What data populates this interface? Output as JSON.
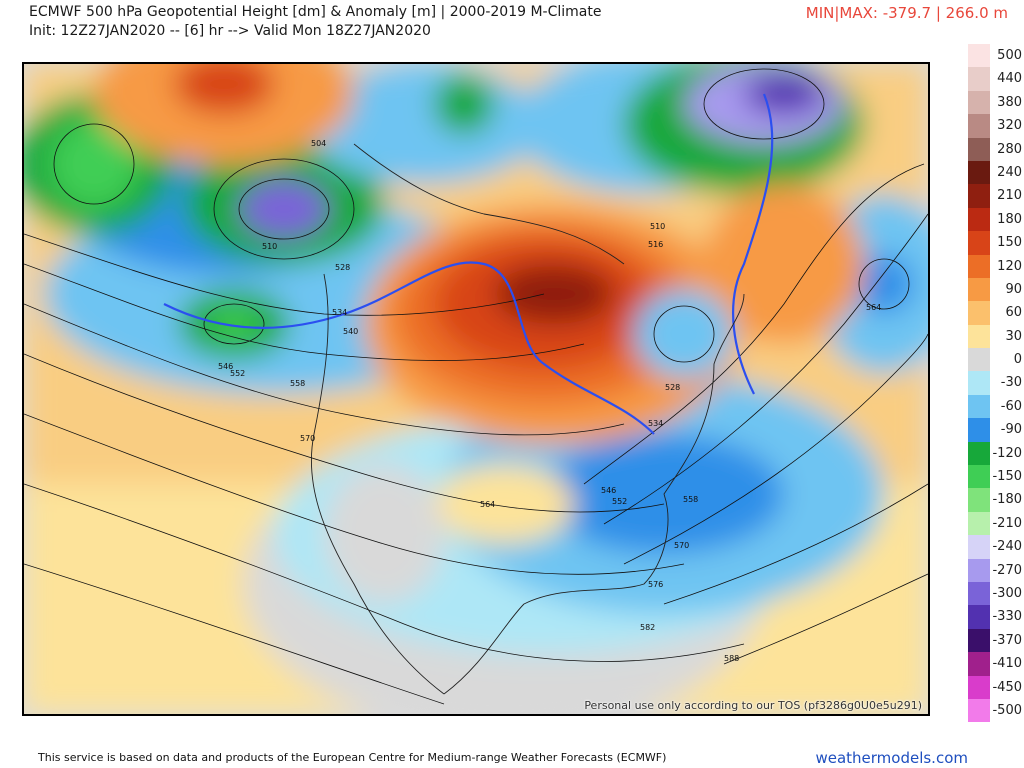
{
  "header": {
    "title": "ECMWF 500 hPa Geopotential Height [dm] & Anomaly [m] | 2000-2019 M-Climate",
    "init": "Init: 12Z27JAN2020 -- [6] hr --> Valid Mon 18Z27JAN2020",
    "minmax": "MIN|MAX: -379.7 | 266.0 m"
  },
  "map": {
    "credit": "Personal use only according to our TOS (pf3286g0U0e5u291)",
    "height_labels": [
      "504",
      "510",
      "528",
      "534",
      "540",
      "546",
      "552",
      "558",
      "570",
      "564",
      "510",
      "516",
      "564",
      "528",
      "534",
      "546",
      "552",
      "558",
      "570",
      "576",
      "582",
      "588"
    ]
  },
  "legend": {
    "entries": [
      {
        "label": "500",
        "color": "#fbe3e3"
      },
      {
        "label": "440",
        "color": "#e8cdc9"
      },
      {
        "label": "380",
        "color": "#d6b2ac"
      },
      {
        "label": "320",
        "color": "#b98a84"
      },
      {
        "label": "280",
        "color": "#8e5d56"
      },
      {
        "label": "240",
        "color": "#6a1a10"
      },
      {
        "label": "210",
        "color": "#8f1f10"
      },
      {
        "label": "180",
        "color": "#bb2a12"
      },
      {
        "label": "150",
        "color": "#d84418"
      },
      {
        "label": "120",
        "color": "#ec6e26"
      },
      {
        "label": "90",
        "color": "#f79a44"
      },
      {
        "label": "60",
        "color": "#fbc06c"
      },
      {
        "label": "30",
        "color": "#fde39a"
      },
      {
        "label": "0",
        "color": "#d9d9d9"
      },
      {
        "label": "-30",
        "color": "#aee7f6"
      },
      {
        "label": "-60",
        "color": "#6ec4f2"
      },
      {
        "label": "-90",
        "color": "#2e8fe8"
      },
      {
        "label": "-120",
        "color": "#17a83a"
      },
      {
        "label": "-150",
        "color": "#3fce55"
      },
      {
        "label": "-180",
        "color": "#7fe37b"
      },
      {
        "label": "-210",
        "color": "#b7f0ac"
      },
      {
        "label": "-240",
        "color": "#d6d3f7"
      },
      {
        "label": "-270",
        "color": "#a79aee"
      },
      {
        "label": "-300",
        "color": "#7a63d8"
      },
      {
        "label": "-330",
        "color": "#5231b0"
      },
      {
        "label": "-370",
        "color": "#3a0f6a"
      },
      {
        "label": "-410",
        "color": "#a0208c"
      },
      {
        "label": "-450",
        "color": "#d93ccb"
      },
      {
        "label": "-500",
        "color": "#f27bea"
      }
    ]
  },
  "footer": {
    "text": "This service is based on data and products of the European Centre for Medium-range Weather Forecasts (ECMWF)",
    "brand": "weathermodels.com"
  }
}
